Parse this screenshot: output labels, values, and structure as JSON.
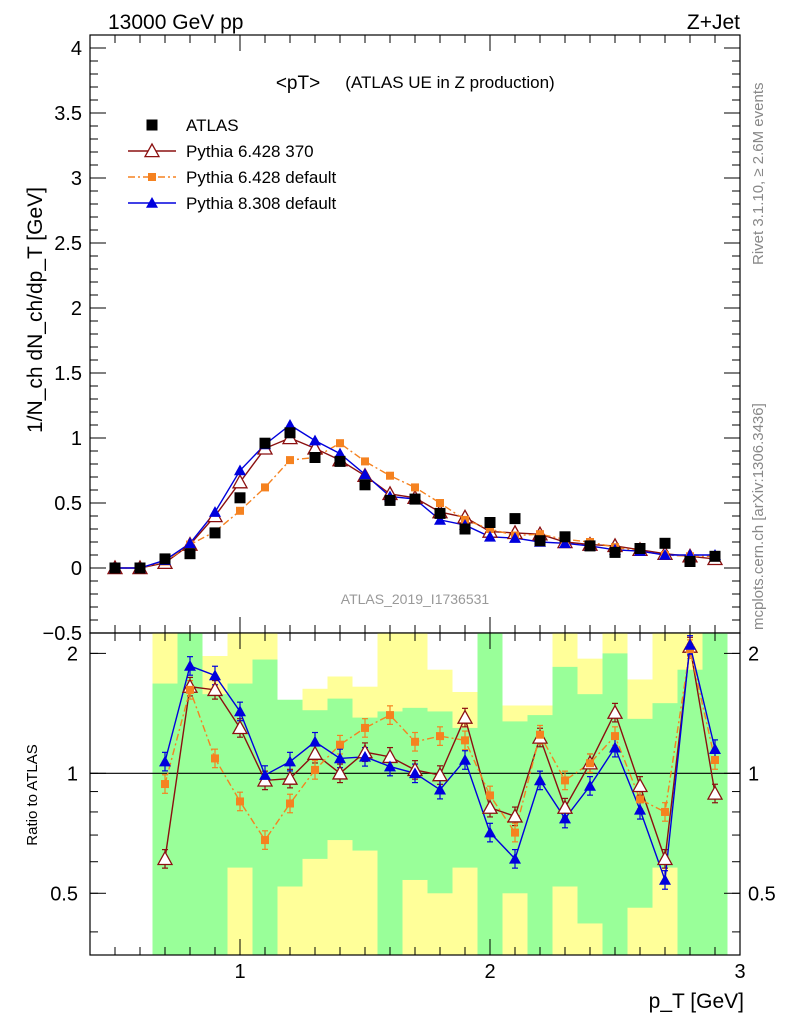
{
  "header": {
    "energy_label": "13000 GeV pp",
    "process_label": "Z+Jet"
  },
  "side_text": {
    "rivet": "Rivet 3.1.10, ≥ 2.6M events",
    "mcplots": "mcplots.cern.ch [arXiv:1306.3436]"
  },
  "chart_data": {
    "type": "line",
    "title": "<pT>",
    "subtitle": "(ATLAS UE in Z production)",
    "analysis_label": "ATLAS_2019_I1736531",
    "xlabel": "p_T [GeV]",
    "ylabel": "1/N_ch dN_ch/dp_T [GeV]",
    "ratio_ylabel": "Ratio to ATLAS",
    "xlim": [
      0.4,
      3.0
    ],
    "ylim": [
      -0.5,
      4.1
    ],
    "ratio_ylim": [
      0.35,
      2.25
    ],
    "ratio_ref": 1,
    "x_ticks": [
      "1",
      "2",
      "3"
    ],
    "y_ticks": [
      "−0.5",
      "0",
      "0.5",
      "1",
      "1.5",
      "2",
      "2.5",
      "3",
      "3.5",
      "4"
    ],
    "ratio_ticks": [
      "0.5",
      "1",
      "2"
    ],
    "legend_position": "top-left",
    "x": [
      0.5,
      0.6,
      0.7,
      0.8,
      0.9,
      1.0,
      1.1,
      1.2,
      1.3,
      1.4,
      1.5,
      1.6,
      1.7,
      1.8,
      1.9,
      2.0,
      2.1,
      2.2,
      2.3,
      2.4,
      2.5,
      2.6,
      2.7,
      2.8,
      2.9
    ],
    "series": [
      {
        "name": "ATLAS",
        "color": "#000000",
        "marker": "square",
        "values": [
          0.0,
          0.0,
          0.07,
          0.11,
          0.27,
          0.54,
          0.96,
          1.04,
          0.85,
          0.82,
          0.64,
          0.52,
          0.53,
          0.42,
          0.3,
          0.35,
          0.38,
          0.21,
          0.24,
          0.17,
          0.12,
          0.15,
          0.19,
          0.05,
          0.09
        ],
        "ratio": [
          null,
          null,
          null,
          null,
          null,
          null,
          null,
          null,
          null,
          null,
          null,
          null,
          null,
          null,
          null,
          null,
          null,
          null,
          null,
          null,
          null,
          null,
          null,
          null,
          null
        ]
      },
      {
        "name": "Pythia 6.428 370",
        "color": "#8b1010",
        "marker": "open-triangle",
        "values": [
          0.0,
          0.0,
          0.04,
          0.18,
          0.4,
          0.66,
          0.92,
          1.0,
          0.92,
          0.83,
          0.71,
          0.57,
          0.54,
          0.43,
          0.39,
          0.28,
          0.27,
          0.26,
          0.2,
          0.18,
          0.17,
          0.14,
          0.11,
          0.09,
          0.07
        ],
        "ratio": [
          null,
          null,
          0.61,
          1.65,
          1.62,
          1.3,
          0.96,
          0.97,
          1.12,
          1.0,
          1.13,
          1.1,
          1.02,
          0.99,
          1.38,
          0.82,
          0.78,
          1.23,
          0.82,
          1.06,
          1.42,
          0.93,
          0.61,
          2.08,
          0.89
        ]
      },
      {
        "name": "Pythia 6.428 default",
        "color": "#f58220",
        "marker": "square",
        "values": [
          0.0,
          0.0,
          0.05,
          0.18,
          0.28,
          0.44,
          0.62,
          0.83,
          0.85,
          0.96,
          0.82,
          0.71,
          0.62,
          0.5,
          0.37,
          0.3,
          0.25,
          0.26,
          0.22,
          0.2,
          0.16,
          0.13,
          0.1,
          0.09,
          0.09
        ],
        "ratio": [
          null,
          null,
          0.94,
          1.62,
          1.09,
          0.85,
          0.68,
          0.84,
          1.02,
          1.18,
          1.3,
          1.4,
          1.2,
          1.24,
          1.21,
          0.88,
          0.71,
          1.25,
          0.96,
          1.06,
          1.24,
          0.86,
          0.8,
          2.05,
          1.08
        ]
      },
      {
        "name": "Pythia 8.308 default",
        "color": "#0000dd",
        "marker": "triangle",
        "values": [
          0.0,
          0.0,
          0.06,
          0.19,
          0.43,
          0.75,
          0.95,
          1.1,
          0.98,
          0.88,
          0.72,
          0.55,
          0.53,
          0.37,
          0.33,
          0.24,
          0.23,
          0.2,
          0.19,
          0.17,
          0.14,
          0.13,
          0.1,
          0.1,
          0.1
        ],
        "ratio": [
          null,
          null,
          1.07,
          1.86,
          1.76,
          1.43,
          0.99,
          1.07,
          1.2,
          1.09,
          1.1,
          1.04,
          1.0,
          0.91,
          1.08,
          0.71,
          0.61,
          0.96,
          0.77,
          0.93,
          1.16,
          0.81,
          0.54,
          2.1,
          1.15
        ]
      }
    ],
    "ratio_bands": {
      "x_edges": [
        0.65,
        0.75,
        0.85,
        0.95,
        1.05,
        1.15,
        1.25,
        1.35,
        1.45,
        1.55,
        1.65,
        1.75,
        1.85,
        1.95,
        2.05,
        2.15,
        2.25,
        2.35,
        2.45,
        2.55,
        2.65,
        2.75,
        2.85,
        2.95
      ],
      "green": [
        [
          0.35,
          1.68
        ],
        [
          0.35,
          2.25
        ],
        [
          0.35,
          1.58
        ],
        [
          0.58,
          1.68
        ],
        [
          0.35,
          1.93
        ],
        [
          0.52,
          1.53
        ],
        [
          0.61,
          1.44
        ],
        [
          0.68,
          1.54
        ],
        [
          0.64,
          1.38
        ],
        [
          0.35,
          1.43
        ],
        [
          0.54,
          1.46
        ],
        [
          0.5,
          1.43
        ],
        [
          0.58,
          1.3
        ],
        [
          0.35,
          2.25
        ],
        [
          0.5,
          1.35
        ],
        [
          0.35,
          1.4
        ],
        [
          0.52,
          1.85
        ],
        [
          0.42,
          1.58
        ],
        [
          0.35,
          2.0
        ],
        [
          0.46,
          1.37
        ],
        [
          0.58,
          1.5
        ],
        [
          0.35,
          1.82
        ],
        [
          0.35,
          2.25
        ]
      ],
      "yellow": [
        [
          0.35,
          2.25
        ],
        [
          0.35,
          2.25
        ],
        [
          0.35,
          1.97
        ],
        [
          0.35,
          2.25
        ],
        [
          0.35,
          2.25
        ],
        [
          0.35,
          1.44
        ],
        [
          0.35,
          1.63
        ],
        [
          0.35,
          1.75
        ],
        [
          0.35,
          1.65
        ],
        [
          0.35,
          2.25
        ],
        [
          0.35,
          2.25
        ],
        [
          0.35,
          1.82
        ],
        [
          0.35,
          1.6
        ],
        [
          0.35,
          2.25
        ],
        [
          0.35,
          1.48
        ],
        [
          0.35,
          1.48
        ],
        [
          0.35,
          2.25
        ],
        [
          0.35,
          1.94
        ],
        [
          0.35,
          2.25
        ],
        [
          0.35,
          1.72
        ],
        [
          0.35,
          2.25
        ],
        [
          0.35,
          2.25
        ],
        [
          0.35,
          1.94
        ]
      ]
    }
  }
}
